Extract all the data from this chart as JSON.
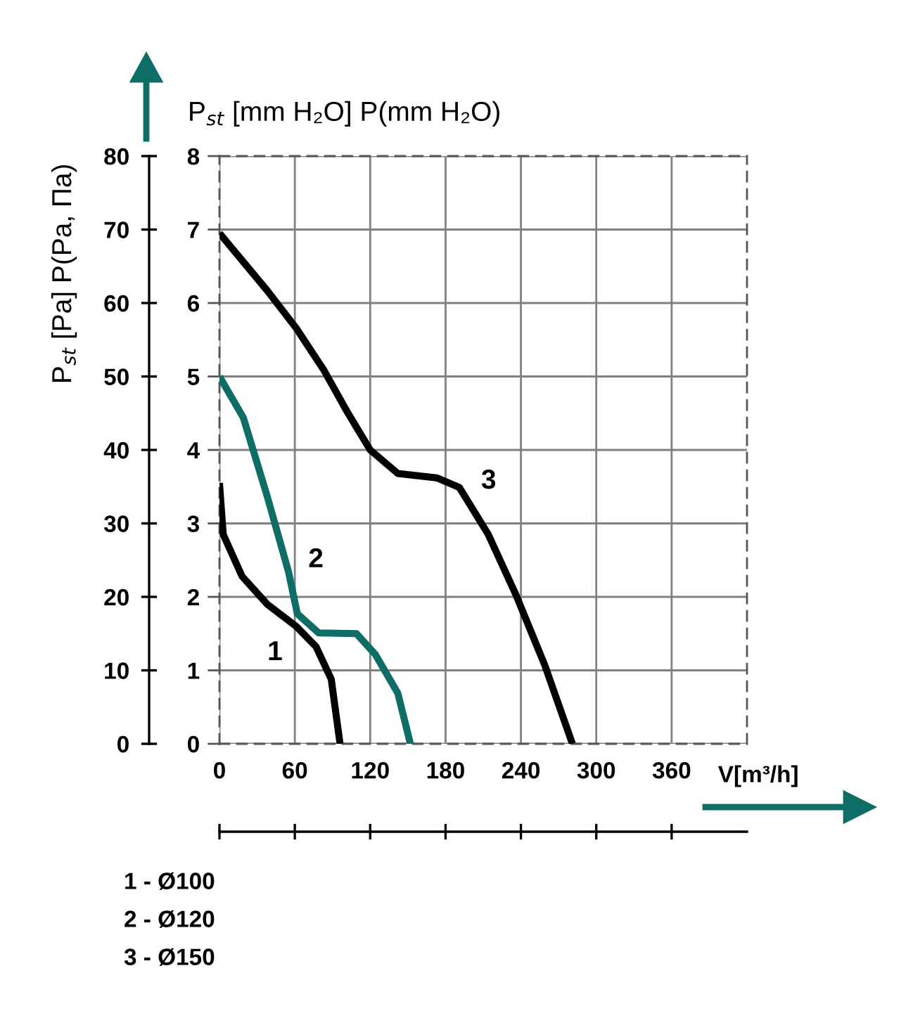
{
  "chart_data": {
    "type": "line",
    "ylabel": "P$_{st}$ [mm H₂O] P(mm H₂O)",
    "y2label": "P$_{st}$ [Pa] P(Pa, Па)",
    "xlabel": "V[m³/h]",
    "xlim": [
      0,
      420
    ],
    "xticks": [
      0,
      60,
      120,
      180,
      240,
      300,
      360
    ],
    "ylim": [
      0,
      8
    ],
    "yticks": [
      0,
      1,
      2,
      3,
      4,
      5,
      6,
      7,
      8
    ],
    "y2lim": [
      0,
      80
    ],
    "y2ticks": [
      0,
      10,
      20,
      30,
      40,
      50,
      60,
      70,
      80
    ],
    "grid": true,
    "series": [
      {
        "name": "1",
        "color": "#000000",
        "x": [
          0,
          3,
          18,
          38,
          61,
          77,
          89,
          96
        ],
        "values": [
          3.55,
          2.85,
          2.28,
          1.9,
          1.6,
          1.32,
          0.88,
          0
        ]
      },
      {
        "name": "2",
        "color": "#0e6e66",
        "x": [
          0,
          19,
          38,
          55,
          62,
          79,
          109,
          124,
          142,
          152
        ],
        "values": [
          5.0,
          4.44,
          3.37,
          2.34,
          1.77,
          1.51,
          1.5,
          1.22,
          0.69,
          0
        ]
      },
      {
        "name": "3",
        "color": "#000000",
        "x": [
          0,
          38,
          61,
          83,
          102,
          120,
          142,
          173,
          191,
          214,
          236,
          259,
          281
        ],
        "values": [
          6.95,
          6.17,
          5.66,
          5.09,
          4.51,
          4.0,
          3.68,
          3.62,
          3.49,
          2.85,
          2.03,
          1.07,
          0
        ]
      }
    ],
    "annotations": [
      "1 - Ø100",
      "2 - Ø120",
      "3 - Ø150"
    ]
  }
}
